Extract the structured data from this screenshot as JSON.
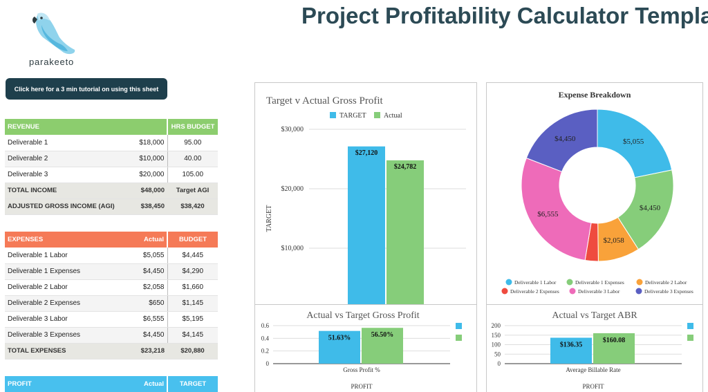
{
  "brand": {
    "name": "parakeeto"
  },
  "title": "Project Profitability Calculator Template",
  "tutorial_button": "Click here for a 3 min tutorial on using this sheet",
  "revenue": {
    "header": "REVENUE",
    "hrs_header": "HRS BUDGET",
    "rows": [
      {
        "label": "Deliverable 1",
        "amount": "$18,000",
        "hrs": "95.00"
      },
      {
        "label": "Deliverable 2",
        "amount": "$10,000",
        "hrs": "40.00"
      },
      {
        "label": "Deliverable 3",
        "amount": "$20,000",
        "hrs": "105.00"
      }
    ],
    "total_label": "TOTAL INCOME",
    "total_amount": "$48,000",
    "total_col3": "Target AGI",
    "agi_label": "ADJUSTED GROSS INCOME (AGI)",
    "agi_actual": "$38,450",
    "agi_target": "$38,420"
  },
  "expenses": {
    "header": "EXPENSES",
    "actual_header": "Actual",
    "budget_header": "BUDGET",
    "rows": [
      {
        "label": "Deliverable 1 Labor",
        "actual": "$5,055",
        "budget": "$4,445"
      },
      {
        "label": "Deliverable 1 Expenses",
        "actual": "$4,450",
        "budget": "$4,290"
      },
      {
        "label": "Deliverable 2 Labor",
        "actual": "$2,058",
        "budget": "$1,660"
      },
      {
        "label": "Deliverable 2 Expenses",
        "actual": "$650",
        "budget": "$1,145"
      },
      {
        "label": "Deliverable 3 Labor",
        "actual": "$6,555",
        "budget": "$5,195"
      },
      {
        "label": "Deliverable 3 Expenses",
        "actual": "$4,450",
        "budget": "$4,145"
      }
    ],
    "total_label": "TOTAL EXPENSES",
    "total_actual": "$23,218",
    "total_budget": "$20,880"
  },
  "profit": {
    "header": "PROFIT",
    "actual_header": "Actual",
    "target_header": "TARGET"
  },
  "colors": {
    "target": "#3fbbe9",
    "actual": "#86cd7a",
    "revenue": "#8ccd6e",
    "expenses": "#f57a57",
    "profit": "#48c0ee",
    "title": "#2c4a55"
  },
  "chart_data": [
    {
      "type": "bar",
      "title": "Target v Actual Gross Profit",
      "ylabel": "TARGET",
      "ylim": [
        0,
        30000
      ],
      "yticks": [
        "$30,000",
        "$20,000",
        "$10,000"
      ],
      "ytick_values": [
        30000,
        20000,
        10000
      ],
      "series": [
        {
          "name": "TARGET",
          "values": [
            27120
          ],
          "labels": [
            "$27,120"
          ]
        },
        {
          "name": "Actual",
          "values": [
            24782
          ],
          "labels": [
            "$24,782"
          ]
        }
      ],
      "legend": "top"
    },
    {
      "type": "pie",
      "title": "Expense Breakdown",
      "categories": [
        "Deliverable 1 Labor",
        "Deliverable 1 Expenses",
        "Deliverable 2 Labor",
        "Deliverable 2 Expenses",
        "Deliverable 3 Labor",
        "Deliverable 3 Expenses"
      ],
      "values": [
        5055,
        4450,
        2058,
        650,
        6555,
        4450
      ],
      "labels": [
        "$5,055",
        "$4,450",
        "$2,058",
        "",
        "$6,555",
        "$4,450"
      ],
      "colors": [
        "#3fbbe9",
        "#86cd7a",
        "#f9a23a",
        "#ef4b3f",
        "#ee6bb9",
        "#5a5fc2"
      ],
      "legend": "bottom"
    },
    {
      "type": "bar",
      "title": "Actual vs Target Gross Profit",
      "categories": [
        "Gross Profit %"
      ],
      "xlabel": "PROFIT",
      "ylim": [
        0,
        0.6
      ],
      "yticks": [
        "0.6",
        "0.4",
        "0.2",
        "0"
      ],
      "ytick_values": [
        0.6,
        0.4,
        0.2,
        0
      ],
      "series": [
        {
          "values": [
            0.5163
          ],
          "labels": [
            "51.63%"
          ]
        },
        {
          "values": [
            0.565
          ],
          "labels": [
            "56.50%"
          ]
        }
      ]
    },
    {
      "type": "bar",
      "title": "Actual vs Target ABR",
      "categories": [
        "Average Billable Rate"
      ],
      "xlabel": "PROFIT",
      "ylim": [
        0,
        200
      ],
      "yticks": [
        "200",
        "150",
        "100",
        "50",
        "0"
      ],
      "ytick_values": [
        200,
        150,
        100,
        50,
        0
      ],
      "series": [
        {
          "values": [
            136.35
          ],
          "labels": [
            "$136.35"
          ]
        },
        {
          "values": [
            160.08
          ],
          "labels": [
            "$160.08"
          ]
        }
      ]
    }
  ]
}
